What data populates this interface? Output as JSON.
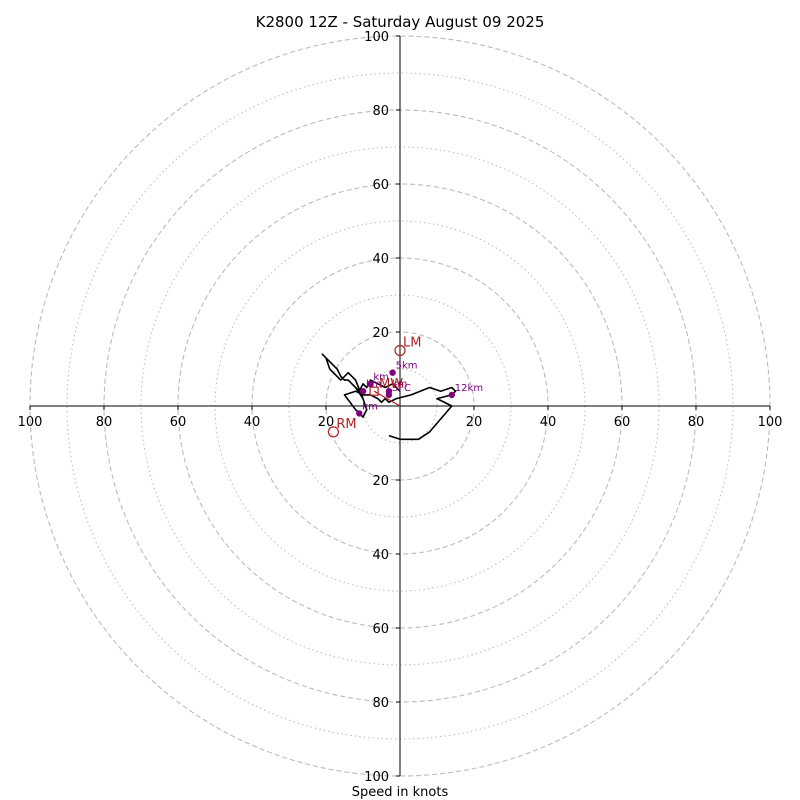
{
  "chart_data": {
    "type": "line",
    "title": "K2800 12Z - Saturday August 09 2025",
    "xlabel": "Speed in knots",
    "range": 100,
    "axis_ticks": [
      20,
      40,
      60,
      80,
      100
    ],
    "rings_dashed": [
      20,
      40,
      60,
      80,
      100
    ],
    "rings_dotted": [
      10,
      30,
      50,
      70,
      90
    ],
    "colors": {
      "hodograph": "#000000",
      "heights": "#800080",
      "motion": "#b22222",
      "grid": "#bbbbbb",
      "axis": "#000000"
    },
    "hodograph": {
      "u": [
        0,
        -1,
        -2,
        -4,
        -6,
        -8,
        -9,
        -10,
        -11,
        -12,
        -10,
        -12,
        -14,
        -15,
        -16,
        -17,
        -18,
        -19,
        -20,
        -21,
        -20,
        -19,
        -18,
        -17,
        -16,
        -15,
        -14,
        -13,
        -11,
        -10,
        -9,
        -10,
        -12,
        -15,
        -12,
        -10,
        -8,
        -6,
        -5,
        -4,
        -3,
        -1,
        3,
        8,
        11,
        14,
        15,
        14,
        10,
        14,
        8,
        5,
        0,
        -3
      ],
      "v": [
        4,
        5,
        6,
        5,
        6,
        7,
        5,
        6,
        4,
        5,
        2,
        7,
        9,
        8,
        7,
        8,
        9,
        10,
        13,
        14,
        13,
        12,
        11,
        10,
        8,
        7,
        7,
        6,
        4,
        2,
        -1,
        -3,
        -1,
        3,
        4,
        3,
        3,
        2,
        1,
        2,
        1,
        2,
        3,
        5,
        4,
        5,
        4,
        3,
        2,
        0,
        -7,
        -9,
        -9,
        -8
      ]
    },
    "height_labels": [
      {
        "label": "5km",
        "u": -2,
        "v": 9
      },
      {
        "label": "12km",
        "u": 14,
        "v": 3
      },
      {
        "label": "km",
        "u": -3,
        "v": 4
      },
      {
        "label": "km",
        "u": -8,
        "v": 6
      },
      {
        "label": "km",
        "u": -10,
        "v": 4
      },
      {
        "label": "km",
        "u": -11,
        "v": -2
      },
      {
        "label": "SFC",
        "u": -3,
        "v": 3
      }
    ],
    "storm_motion": [
      {
        "label": "LM",
        "u": 0,
        "v": 15
      },
      {
        "label": "RM",
        "u": -18,
        "v": -7
      }
    ],
    "mean_wind": {
      "label": "MW",
      "u": -7,
      "v": 4
    }
  }
}
